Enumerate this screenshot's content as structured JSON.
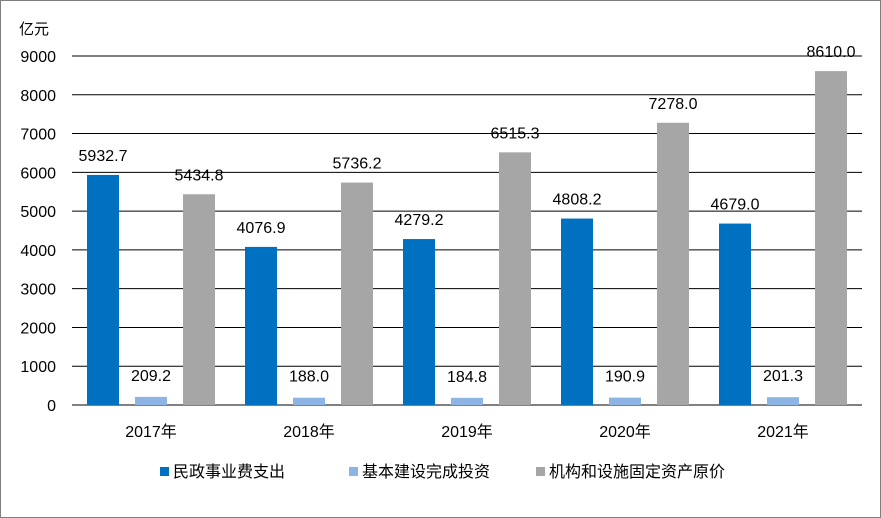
{
  "chart_data": {
    "type": "bar",
    "unit_label": "亿元",
    "categories": [
      "2017年",
      "2018年",
      "2019年",
      "2020年",
      "2021年"
    ],
    "ylim": [
      0,
      9000
    ],
    "yticks": [
      0,
      1000,
      2000,
      3000,
      4000,
      5000,
      6000,
      7000,
      8000,
      9000
    ],
    "grid": true,
    "legend_position": "bottom",
    "series": [
      {
        "name": "民政事业费支出",
        "color": "#0070C0",
        "values": [
          5932.7,
          4076.9,
          4279.2,
          4808.2,
          4679.0
        ],
        "labels": [
          "5932.7",
          "4076.9",
          "4279.2",
          "4808.2",
          "4679.0"
        ]
      },
      {
        "name": "基本建设完成投资",
        "color": "#8EB4E3",
        "values": [
          209.2,
          188.0,
          184.8,
          190.9,
          201.3
        ],
        "labels": [
          "209.2",
          "188.0",
          "184.8",
          "190.9",
          "201.3"
        ]
      },
      {
        "name": "机构和设施固定资产原价",
        "color": "#A6A6A6",
        "values": [
          5434.8,
          5736.2,
          6515.3,
          7278.0,
          8610.0
        ],
        "labels": [
          "5434.8",
          "5736.2",
          "6515.3",
          "7278.0",
          "8610.0"
        ]
      }
    ]
  }
}
